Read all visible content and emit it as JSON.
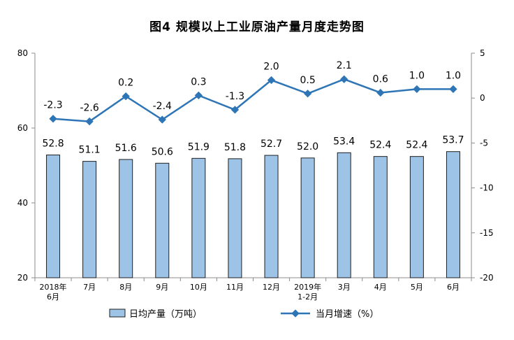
{
  "chart_data": {
    "type": "bar",
    "title": "图4  规模以上工业原油产量月度走势图",
    "categories": [
      [
        "2018年",
        "6月"
      ],
      [
        "7月"
      ],
      [
        "8月"
      ],
      [
        "9月"
      ],
      [
        "10月"
      ],
      [
        "11月"
      ],
      [
        "12月"
      ],
      [
        "2019年",
        "1-2月"
      ],
      [
        "3月"
      ],
      [
        "4月"
      ],
      [
        "5月"
      ],
      [
        "6月"
      ]
    ],
    "series": [
      {
        "name": "日均产量（万吨）",
        "type": "bar",
        "axis": "left",
        "color": "#9dc3e6",
        "values": [
          52.8,
          51.1,
          51.6,
          50.6,
          51.9,
          51.8,
          52.7,
          52.0,
          53.4,
          52.4,
          52.4,
          53.7
        ],
        "labels": [
          "52.8",
          "51.1",
          "51.6",
          "50.6",
          "51.9",
          "51.8",
          "52.7",
          "52.0",
          "53.4",
          "52.4",
          "52.4",
          "53.7"
        ]
      },
      {
        "name": "当月增速（%）",
        "type": "line",
        "axis": "right",
        "color": "#2e75b6",
        "values": [
          -2.3,
          -2.6,
          0.2,
          -2.4,
          0.3,
          -1.3,
          2.0,
          0.5,
          2.1,
          0.6,
          1.0,
          1.0
        ],
        "labels": [
          "-2.3",
          "-2.6",
          "0.2",
          "-2.4",
          "0.3",
          "-1.3",
          "2.0",
          "0.5",
          "2.1",
          "0.6",
          "1.0",
          "1.0"
        ]
      }
    ],
    "y_left": {
      "lim": [
        20,
        80
      ],
      "ticks": [
        "20",
        "40",
        "60",
        "80"
      ]
    },
    "y_right": {
      "lim": [
        -20,
        5
      ],
      "ticks": [
        "-20",
        "-15",
        "-10",
        "-5",
        "0",
        "5"
      ]
    },
    "grid": false,
    "legend_position": "bottom-center"
  }
}
